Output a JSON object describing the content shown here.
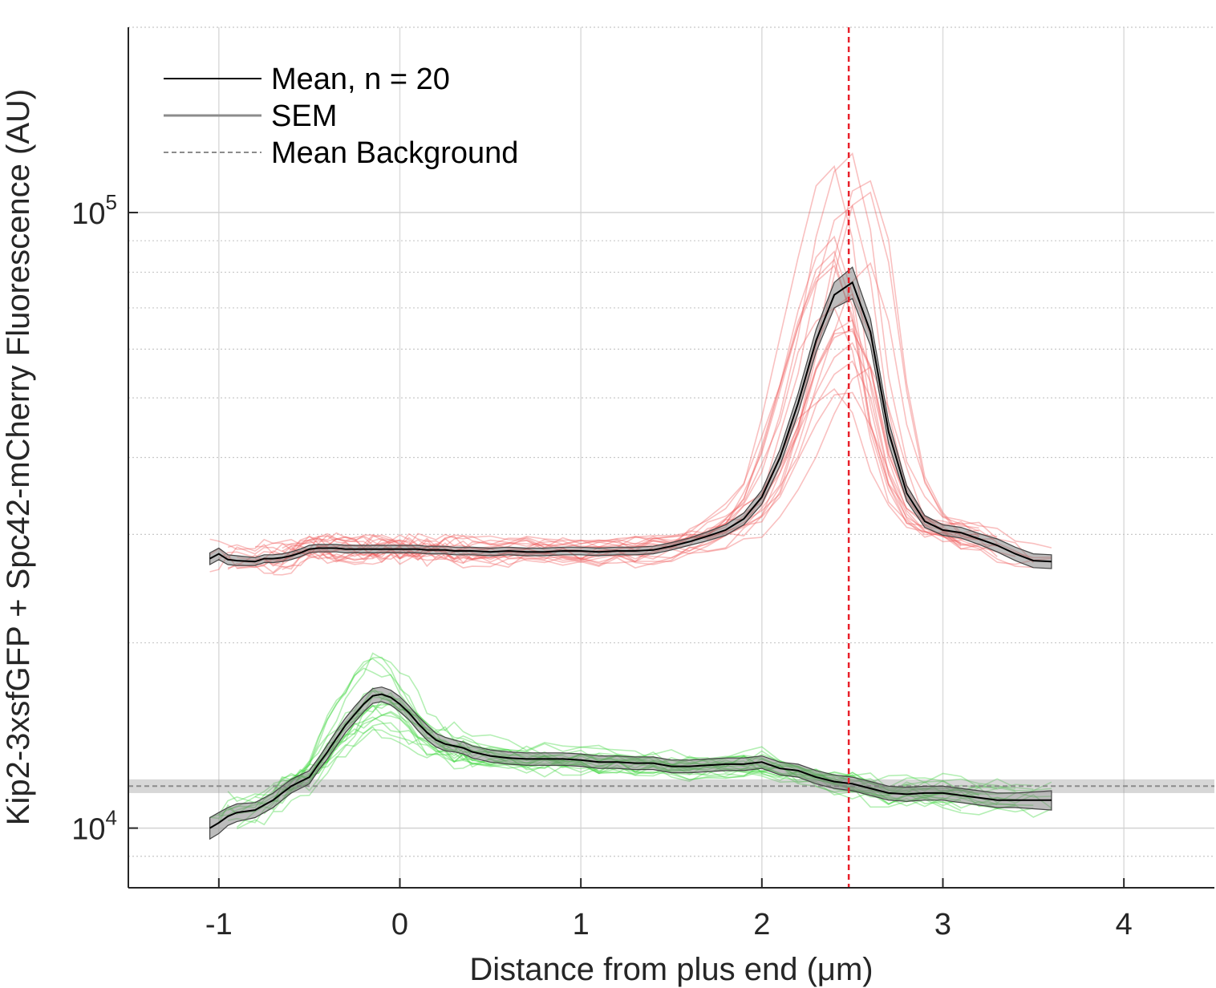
{
  "chart_data": {
    "type": "line",
    "title": "",
    "xlabel": "Distance from plus end (μm)",
    "ylabel": "Kip2-3xsfGFP + Spc42-mCherry Fluorescence (AU)",
    "xlim": [
      -1.5,
      4.5
    ],
    "ylim": [
      8000,
      200000
    ],
    "yscale": "log",
    "grid": true,
    "minor_grid": true,
    "xticks": [
      -1,
      0,
      1,
      2,
      3,
      4
    ],
    "yticks": [
      {
        "base": "10",
        "exp": "4",
        "value": 10000
      },
      {
        "base": "10",
        "exp": "5",
        "value": 100000
      }
    ],
    "legend_position": "top-left",
    "legend": [
      {
        "label": "Mean, n = 20",
        "style": "solid",
        "color": "#000000"
      },
      {
        "label": "SEM",
        "style": "solid",
        "color": "#8c8c8c"
      },
      {
        "label": "Mean Background",
        "style": "dashed",
        "color": "#8c8c8c"
      }
    ],
    "annotations": [
      {
        "type": "vertical_line",
        "x": 2.48,
        "color": "#e8202a",
        "style": "dashed"
      }
    ],
    "background_mean": 11700,
    "background_sem": 300,
    "x": [
      -1.05,
      -1.0,
      -0.95,
      -0.9,
      -0.8,
      -0.75,
      -0.7,
      -0.65,
      -0.6,
      -0.55,
      -0.5,
      -0.45,
      -0.4,
      -0.35,
      -0.3,
      -0.25,
      -0.2,
      -0.15,
      -0.1,
      -0.05,
      0.0,
      0.05,
      0.1,
      0.15,
      0.2,
      0.25,
      0.3,
      0.35,
      0.4,
      0.5,
      0.6,
      0.7,
      0.8,
      0.9,
      1.0,
      1.1,
      1.2,
      1.3,
      1.4,
      1.5,
      1.6,
      1.7,
      1.8,
      1.9,
      2.0,
      2.1,
      2.2,
      2.3,
      2.4,
      2.5,
      2.6,
      2.7,
      2.8,
      2.9,
      3.0,
      3.1,
      3.2,
      3.3,
      3.4,
      3.5,
      3.6
    ],
    "series": [
      {
        "name": "Spc42-mCherry",
        "trace_color": "#f05a5a",
        "mean": [
          27400,
          27900,
          27300,
          27200,
          27100,
          27400,
          27400,
          27500,
          27700,
          28000,
          28400,
          28500,
          28500,
          28500,
          28400,
          28400,
          28400,
          28400,
          28400,
          28400,
          28400,
          28400,
          28400,
          28300,
          28300,
          28300,
          28200,
          28200,
          28200,
          28100,
          28200,
          28100,
          28100,
          28200,
          28200,
          28100,
          28200,
          28200,
          28300,
          28700,
          29200,
          29800,
          30500,
          31800,
          34500,
          40000,
          49000,
          62000,
          73500,
          77000,
          64000,
          44000,
          35000,
          31500,
          30500,
          30200,
          29500,
          28800,
          27900,
          27200,
          27100
        ],
        "sem": [
          600,
          600,
          500,
          500,
          400,
          400,
          400,
          400,
          400,
          400,
          400,
          400,
          400,
          400,
          400,
          400,
          400,
          400,
          400,
          400,
          400,
          400,
          400,
          400,
          400,
          400,
          400,
          400,
          400,
          400,
          400,
          400,
          400,
          400,
          400,
          400,
          400,
          400,
          400,
          400,
          400,
          500,
          600,
          700,
          900,
          1200,
          1800,
          2600,
          3500,
          4500,
          3200,
          1800,
          1000,
          700,
          600,
          600,
          600,
          700,
          700,
          700,
          700
        ]
      },
      {
        "name": "Kip2-3xsfGFP",
        "trace_color": "#3ad43a",
        "mean": [
          10000,
          10200,
          10450,
          10600,
          10700,
          10900,
          11100,
          11400,
          11700,
          11900,
          12100,
          12700,
          13300,
          14000,
          14700,
          15300,
          15900,
          16400,
          16500,
          16300,
          15900,
          15400,
          14800,
          14300,
          13900,
          13700,
          13600,
          13500,
          13300,
          13100,
          13000,
          12950,
          12950,
          12950,
          12900,
          12800,
          12800,
          12750,
          12750,
          12600,
          12600,
          12650,
          12700,
          12700,
          12800,
          12500,
          12400,
          12100,
          11900,
          11800,
          11600,
          11400,
          11350,
          11400,
          11400,
          11300,
          11200,
          11100,
          11100,
          11100,
          11100
        ],
        "sem": [
          400,
          400,
          350,
          350,
          300,
          300,
          300,
          300,
          300,
          300,
          300,
          300,
          350,
          400,
          400,
          450,
          450,
          450,
          450,
          450,
          450,
          400,
          400,
          400,
          350,
          350,
          300,
          300,
          300,
          300,
          300,
          300,
          300,
          300,
          300,
          300,
          300,
          300,
          300,
          300,
          300,
          300,
          300,
          300,
          300,
          300,
          300,
          300,
          300,
          300,
          300,
          300,
          300,
          300,
          300,
          300,
          300,
          300,
          300,
          350,
          400
        ]
      }
    ]
  }
}
